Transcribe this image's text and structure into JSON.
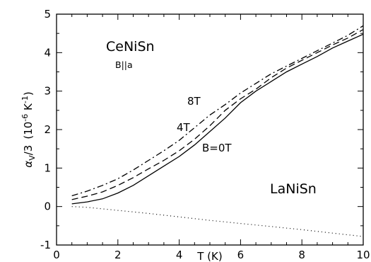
{
  "chart_data": {
    "type": "line",
    "title": "",
    "xlabel": "T (K)",
    "ylabel": "α_V/3 (10⁻⁶ K⁻¹)",
    "ylabel_parts": {
      "symbol": "α",
      "subscript": "V",
      "divisor": "/3",
      "unit_open": "(10",
      "unit_exp1": "-6",
      "unit_mid": " K",
      "unit_exp2": "-1",
      "unit_close": ")"
    },
    "xlim": [
      0,
      10
    ],
    "ylim": [
      -1,
      5
    ],
    "xticks": [
      0,
      2,
      4,
      6,
      8,
      10
    ],
    "yticks": [
      -1,
      0,
      1,
      2,
      3,
      4,
      5
    ],
    "grid": false,
    "legend": "none",
    "annotations": {
      "compound_ce": "CeNiSn",
      "direction": "B||a",
      "compound_la": "LaNiSn",
      "label_8T": "8T",
      "label_4T": "4T",
      "label_0T": "B=0T"
    },
    "series": [
      {
        "name": "B=0T",
        "style": "solid",
        "x": [
          0.5,
          1.0,
          1.5,
          2.0,
          2.5,
          3.0,
          3.5,
          4.0,
          4.5,
          5.0,
          5.5,
          6.0,
          6.5,
          7.0,
          7.5,
          8.0,
          8.5,
          9.0,
          9.5,
          10.0
        ],
        "y": [
          0.07,
          0.12,
          0.2,
          0.35,
          0.55,
          0.8,
          1.05,
          1.3,
          1.6,
          1.95,
          2.3,
          2.7,
          3.0,
          3.25,
          3.5,
          3.7,
          3.9,
          4.12,
          4.3,
          4.48
        ]
      },
      {
        "name": "4T",
        "style": "dashed",
        "x": [
          0.5,
          1.0,
          1.5,
          2.0,
          2.5,
          3.0,
          3.5,
          4.0,
          4.5,
          5.0,
          5.5,
          6.0,
          6.5,
          7.0,
          7.5,
          8.0,
          8.5,
          9.0,
          9.5,
          10.0
        ],
        "y": [
          0.18,
          0.27,
          0.38,
          0.55,
          0.75,
          0.98,
          1.2,
          1.45,
          1.75,
          2.1,
          2.5,
          2.8,
          3.05,
          3.35,
          3.6,
          3.8,
          4.0,
          4.2,
          4.38,
          4.6
        ]
      },
      {
        "name": "8T",
        "style": "dashdot",
        "x": [
          0.5,
          1.0,
          1.5,
          2.0,
          2.5,
          3.0,
          3.5,
          4.0,
          4.5,
          5.0,
          5.5,
          6.0,
          6.5,
          7.0,
          7.5,
          8.0,
          8.5,
          9.0,
          9.5,
          10.0
        ],
        "y": [
          0.28,
          0.4,
          0.55,
          0.72,
          0.95,
          1.2,
          1.45,
          1.72,
          2.05,
          2.38,
          2.65,
          2.95,
          3.2,
          3.45,
          3.65,
          3.85,
          4.05,
          4.25,
          4.45,
          4.7
        ]
      },
      {
        "name": "LaNiSn",
        "style": "dotted",
        "x": [
          0.5,
          1.0,
          2.0,
          3.0,
          4.0,
          5.0,
          6.0,
          7.0,
          8.0,
          9.0,
          10.0
        ],
        "y": [
          0.0,
          -0.02,
          -0.1,
          -0.18,
          -0.27,
          -0.36,
          -0.44,
          -0.52,
          -0.6,
          -0.69,
          -0.78
        ]
      }
    ]
  }
}
